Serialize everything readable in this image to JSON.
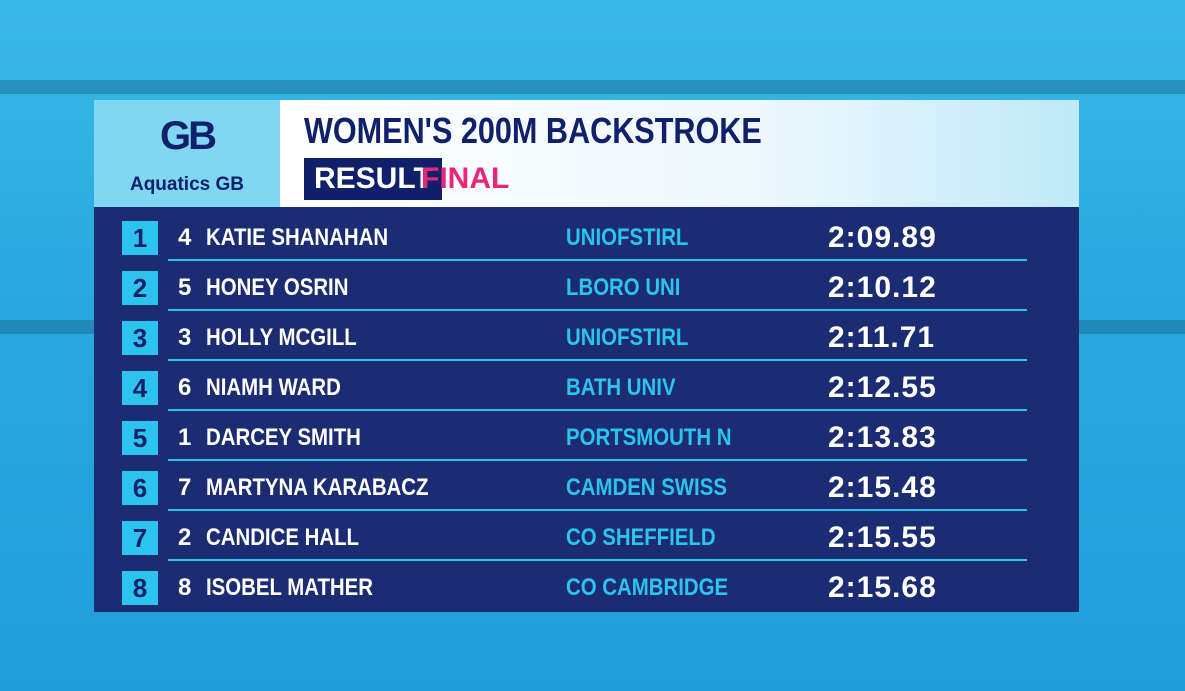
{
  "header": {
    "logo_mark": "GB",
    "logo_text": "Aquatics GB",
    "title": "WOMEN'S 200M BACKSTROKE",
    "status": "RESULT",
    "stage": "FINAL"
  },
  "table": {
    "rows": [
      [
        "1",
        "4",
        "KATIE SHANAHAN",
        "UNIOFSTIRL",
        "2:09.89"
      ],
      [
        "2",
        "5",
        "HONEY OSRIN",
        "LBORO UNI",
        "2:10.12"
      ],
      [
        "3",
        "3",
        "HOLLY MCGILL",
        "UNIOFSTIRL",
        "2:11.71"
      ],
      [
        "4",
        "6",
        "NIAMH WARD",
        "BATH UNIV",
        "2:12.55"
      ],
      [
        "5",
        "1",
        "DARCEY SMITH",
        "PORTSMOUTH N",
        "2:13.83"
      ],
      [
        "6",
        "7",
        "MARTYNA KARABACZ",
        "CAMDEN SWISS",
        "2:15.48"
      ],
      [
        "7",
        "2",
        "CANDICE HALL",
        "CO SHEFFIELD",
        "2:15.55"
      ],
      [
        "8",
        "8",
        "ISOBEL MATHER",
        "CO CAMBRIDGE",
        "2:15.68"
      ]
    ]
  }
}
